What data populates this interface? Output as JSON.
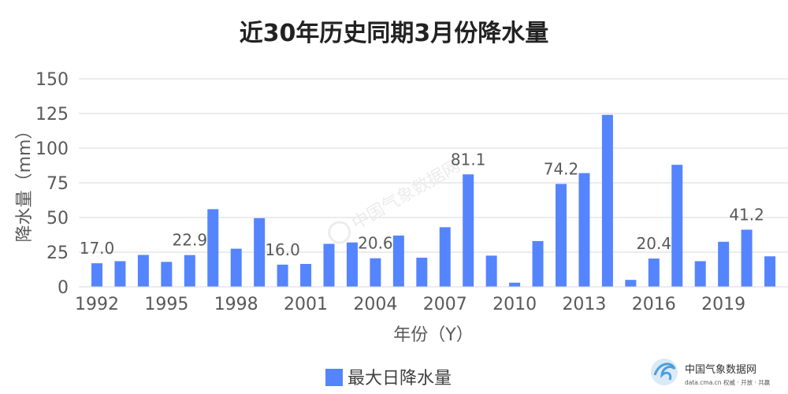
{
  "chart_data": {
    "type": "bar",
    "title": "近30年历史同期3月份降水量",
    "xlabel": "年份（Y）",
    "ylabel": "降水量（mm）",
    "ylim": [
      0,
      150
    ],
    "yticks": [
      0,
      25,
      50,
      75,
      100,
      125,
      150
    ],
    "grid": true,
    "legend_position": "bottom",
    "x": [
      1992,
      1993,
      1994,
      1995,
      1996,
      1997,
      1998,
      1999,
      2000,
      2001,
      2002,
      2003,
      2004,
      2005,
      2006,
      2007,
      2008,
      2009,
      2010,
      2011,
      2012,
      2013,
      2014,
      2015,
      2016,
      2017,
      2018,
      2019,
      2020,
      2021
    ],
    "xtick_labels": [
      "1992",
      "1995",
      "1998",
      "2001",
      "2004",
      "2007",
      "2010",
      "2013",
      "2016",
      "2019"
    ],
    "series": [
      {
        "name": "最大日降水量",
        "color": "#5584FF",
        "values": [
          17.0,
          18.5,
          23.0,
          18.0,
          22.9,
          56.0,
          27.5,
          49.5,
          16.0,
          16.5,
          31.0,
          32.0,
          20.6,
          37.0,
          21.0,
          43.0,
          81.1,
          22.5,
          3.0,
          33.0,
          74.2,
          82.0,
          124.0,
          5.0,
          20.4,
          88.0,
          18.5,
          32.5,
          41.2,
          22.0
        ]
      }
    ],
    "data_labels": [
      {
        "year": 1992,
        "text": "17.0"
      },
      {
        "year": 1996,
        "text": "22.9"
      },
      {
        "year": 2000,
        "text": "16.0"
      },
      {
        "year": 2004,
        "text": "20.6"
      },
      {
        "year": 2008,
        "text": "81.1"
      },
      {
        "year": 2012,
        "text": "74.2"
      },
      {
        "year": 2016,
        "text": "20.4"
      },
      {
        "year": 2020,
        "text": "41.2"
      }
    ]
  },
  "watermark": {
    "center_text": "中国气象数据网",
    "logo_title": "中国气象数据网",
    "logo_subtitle": "data.cma.cn 权威 · 开放 · 共赢"
  }
}
